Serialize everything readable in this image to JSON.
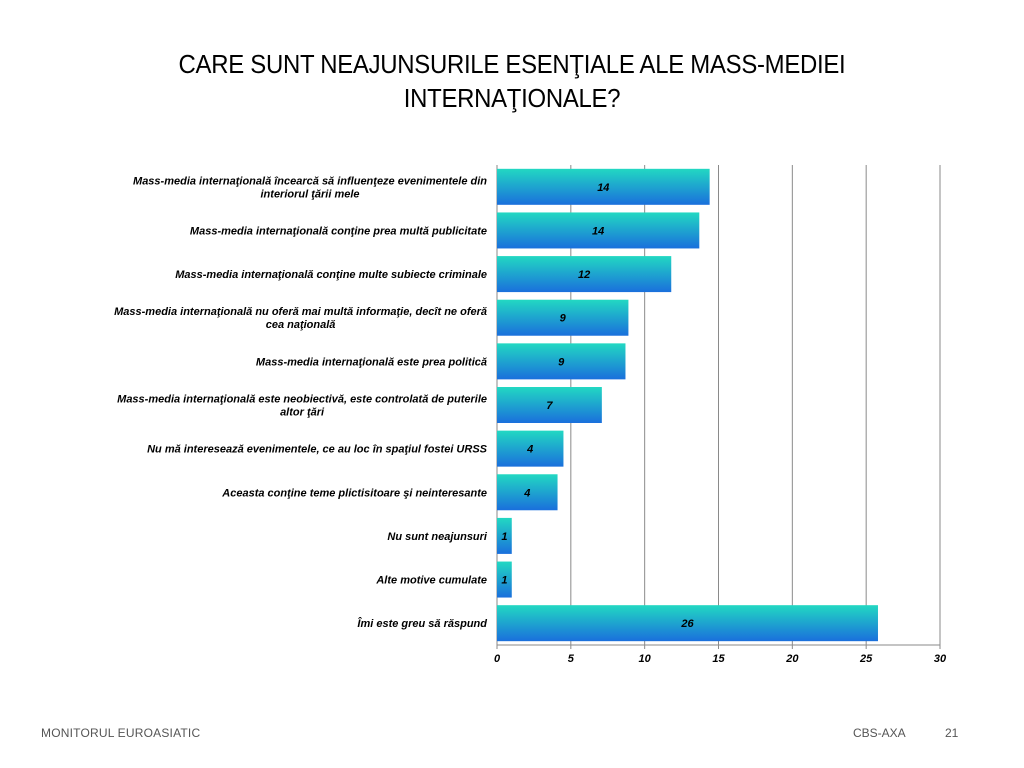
{
  "slide": {
    "title_line1": "CARE SUNT NEAJUNSURILE  ESENŢIALE ALE MASS-MEDIEI",
    "title_line2": "INTERNAŢIONALE?"
  },
  "footer": {
    "left": "MONITORUL  EUROASIATIC",
    "right": "CBS-AXA",
    "page": "21"
  },
  "chart_data": {
    "type": "bar",
    "orientation": "horizontal",
    "categories": [
      [
        "Mass-media internaţională încearcă să influenţeze evenimentele din",
        "interiorul ţării mele"
      ],
      [
        "Mass-media internaţională conţine prea multă publicitate"
      ],
      [
        "Mass-media internaţională conţine multe subiecte criminale"
      ],
      [
        "Mass-media internaţională nu oferă mai multă informaţie, decît ne oferă",
        "cea  naţională"
      ],
      [
        "Mass-media internaţională este prea politică"
      ],
      [
        "Mass-media internaţională este neobiectivă, este controlată de puterile",
        "altor ţări"
      ],
      [
        "Nu mă interesează evenimentele, ce au loc în spaţiul fostei URSS"
      ],
      [
        "Aceasta conţine teme plictisitoare şi neinteresante"
      ],
      [
        "Nu sunt neajunsuri"
      ],
      [
        "Alte motive cumulate"
      ],
      [
        "Îmi este greu să răspund"
      ]
    ],
    "values": [
      14.4,
      13.7,
      11.8,
      8.9,
      8.7,
      7.1,
      4.5,
      4.1,
      1.0,
      1.0,
      25.8
    ],
    "data_labels": [
      "14",
      "14",
      "12",
      "9",
      "9",
      "7",
      "4",
      "4",
      "1",
      "1",
      "26"
    ],
    "xlim": [
      0,
      30
    ],
    "xticks": [
      0,
      5,
      10,
      15,
      20,
      25,
      30
    ],
    "grid": true,
    "legend": "none",
    "colors": {
      "bar_top": "#22d8c2",
      "bar_bottom": "#1a6fdc",
      "grid": "#8a8a8a",
      "label": "#000000"
    }
  }
}
